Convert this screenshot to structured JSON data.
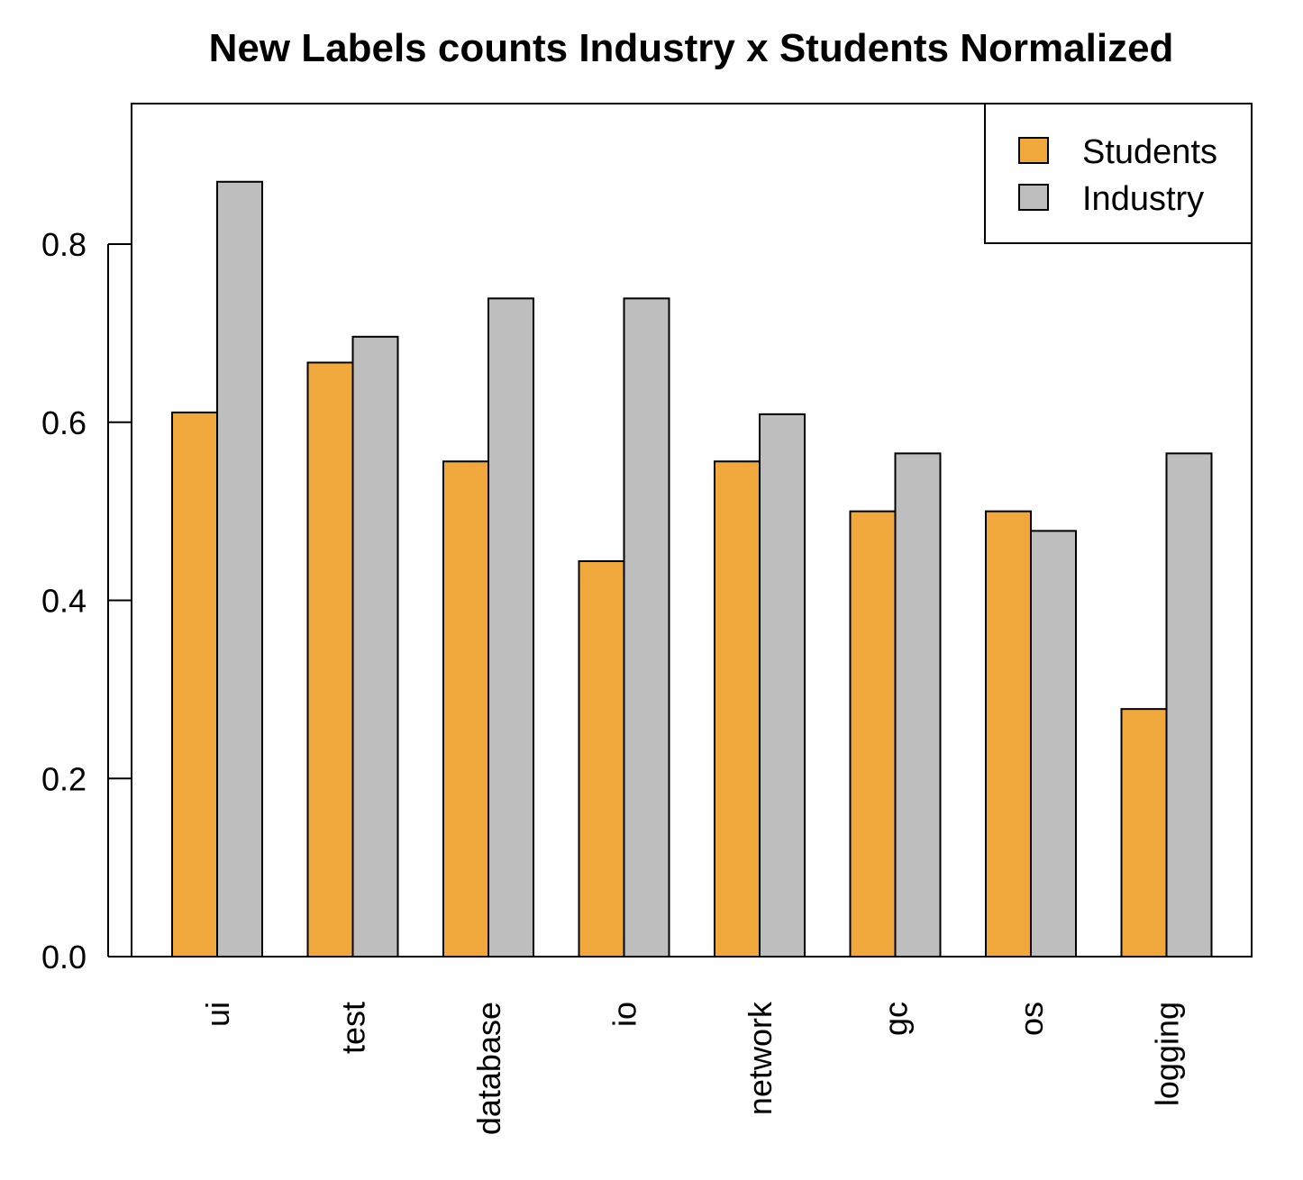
{
  "chart_data": {
    "type": "bar",
    "title": "New Labels counts Industry x Students Normalized",
    "xlabel": "",
    "ylabel": "",
    "categories": [
      "ui",
      "test",
      "database",
      "io",
      "network",
      "gc",
      "os",
      "logging"
    ],
    "series": [
      {
        "name": "Students",
        "color": "#F0A83C",
        "values": [
          0.611,
          0.667,
          0.556,
          0.444,
          0.556,
          0.5,
          0.5,
          0.278
        ]
      },
      {
        "name": "Industry",
        "color": "#BEBEBE",
        "values": [
          0.87,
          0.696,
          0.739,
          0.739,
          0.609,
          0.565,
          0.478,
          0.565
        ]
      }
    ],
    "ylim": [
      0,
      0.95
    ],
    "yticks": [
      0.0,
      0.2,
      0.4,
      0.6,
      0.8
    ],
    "ytick_labels": [
      "0.0",
      "0.2",
      "0.4",
      "0.6",
      "0.8"
    ],
    "grid": false,
    "legend_position": "top-right"
  }
}
